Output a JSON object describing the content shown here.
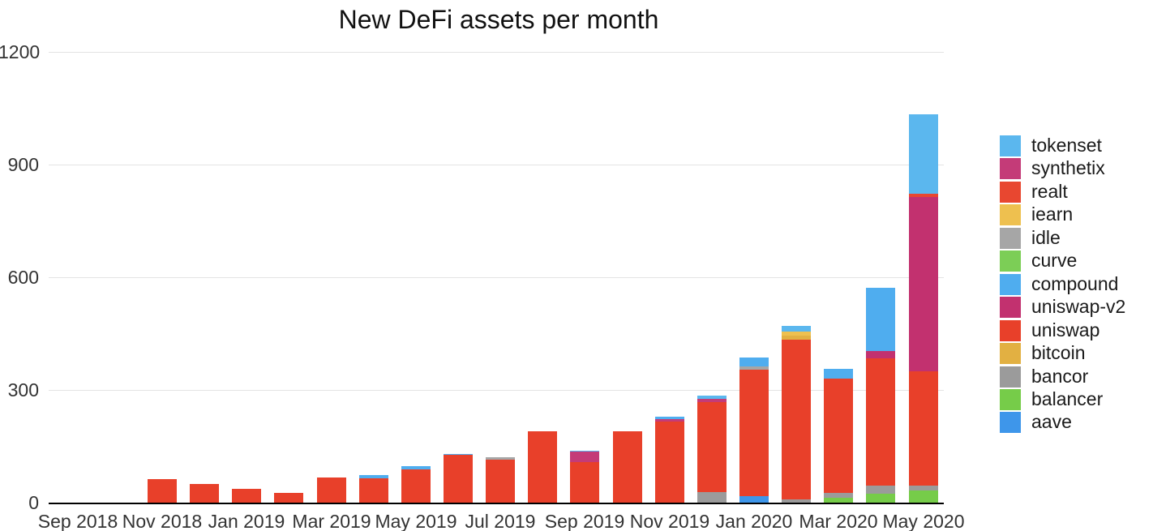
{
  "chart_data": {
    "type": "bar",
    "variant": "stacked",
    "title": "New DeFi assets per month",
    "xlabel": "",
    "ylabel": "",
    "ylim": [
      0,
      1200
    ],
    "y_ticks": [
      0,
      300,
      600,
      900,
      1200
    ],
    "grid": "horizontal",
    "legend_position": "right",
    "x_tick_labels": [
      "Sep 2018",
      "Nov 2018",
      "Jan 2019",
      "Mar 2019",
      "May 2019",
      "Jul 2019",
      "Sep 2019",
      "Nov 2019",
      "Jan 2020",
      "Mar 2020",
      "May 2020"
    ],
    "legend": [
      "tokenset",
      "synthetix",
      "realt",
      "iearn",
      "idle",
      "curve",
      "compound",
      "uniswap-v2",
      "uniswap",
      "bitcoin",
      "bancor",
      "balancer",
      "aave"
    ],
    "series_colors": {
      "tokenset": "#5bb7ee",
      "synthetix": "#c43b78",
      "realt": "#e84730",
      "iearn": "#eec04f",
      "idle": "#a6a6a6",
      "curve": "#7cce56",
      "compound": "#4fadef",
      "uniswap-v2": "#c2316f",
      "uniswap": "#e8402a",
      "bitcoin": "#e2b042",
      "bancor": "#9b9b9b",
      "balancer": "#76cc49",
      "aave": "#3e96ea"
    },
    "bars": [
      {
        "month": "Sep 2018",
        "segments": []
      },
      {
        "month": "Oct 2018",
        "segments": []
      },
      {
        "month": "Nov 2018",
        "segments": [
          {
            "series": "uniswap",
            "value": 62
          }
        ]
      },
      {
        "month": "Dec 2018",
        "segments": [
          {
            "series": "uniswap",
            "value": 50
          }
        ]
      },
      {
        "month": "Jan 2019",
        "segments": [
          {
            "series": "uniswap",
            "value": 36
          }
        ]
      },
      {
        "month": "Feb 2019",
        "segments": [
          {
            "series": "uniswap",
            "value": 26
          }
        ]
      },
      {
        "month": "Mar 2019",
        "segments": [
          {
            "series": "uniswap",
            "value": 67
          }
        ]
      },
      {
        "month": "Apr 2019",
        "segments": [
          {
            "series": "uniswap",
            "value": 64
          },
          {
            "series": "compound",
            "value": 9
          }
        ]
      },
      {
        "month": "May 2019",
        "segments": [
          {
            "series": "uniswap",
            "value": 88
          },
          {
            "series": "compound",
            "value": 9
          }
        ]
      },
      {
        "month": "Jun 2019",
        "segments": [
          {
            "series": "uniswap",
            "value": 127
          },
          {
            "series": "compound",
            "value": 3
          }
        ]
      },
      {
        "month": "Jul 2019",
        "segments": [
          {
            "series": "uniswap",
            "value": 114
          },
          {
            "series": "idle",
            "value": 7
          }
        ]
      },
      {
        "month": "Aug 2019",
        "segments": [
          {
            "series": "uniswap",
            "value": 190
          }
        ]
      },
      {
        "month": "Sep 2019",
        "segments": [
          {
            "series": "uniswap",
            "value": 107
          },
          {
            "series": "synthetix",
            "value": 28
          },
          {
            "series": "tokenset",
            "value": 3
          }
        ]
      },
      {
        "month": "Oct 2019",
        "segments": [
          {
            "series": "uniswap",
            "value": 190
          }
        ]
      },
      {
        "month": "Nov 2019",
        "segments": [
          {
            "series": "uniswap",
            "value": 215
          },
          {
            "series": "synthetix",
            "value": 8
          },
          {
            "series": "compound",
            "value": 6
          }
        ]
      },
      {
        "month": "Dec 2019",
        "segments": [
          {
            "series": "bancor",
            "value": 28
          },
          {
            "series": "uniswap",
            "value": 240
          },
          {
            "series": "synthetix",
            "value": 9
          },
          {
            "series": "tokenset",
            "value": 8
          }
        ]
      },
      {
        "month": "Jan 2020",
        "segments": [
          {
            "series": "aave",
            "value": 17
          },
          {
            "series": "uniswap",
            "value": 337
          },
          {
            "series": "idle",
            "value": 9
          },
          {
            "series": "compound",
            "value": 23
          }
        ]
      },
      {
        "month": "Feb 2020",
        "segments": [
          {
            "series": "bancor",
            "value": 9
          },
          {
            "series": "uniswap",
            "value": 424
          },
          {
            "series": "bitcoin",
            "value": 11
          },
          {
            "series": "iearn",
            "value": 11
          },
          {
            "series": "tokenset",
            "value": 15
          }
        ]
      },
      {
        "month": "Mar 2020",
        "segments": [
          {
            "series": "balancer",
            "value": 13
          },
          {
            "series": "bancor",
            "value": 13
          },
          {
            "series": "uniswap",
            "value": 304
          },
          {
            "series": "compound",
            "value": 26
          }
        ]
      },
      {
        "month": "Apr 2020",
        "segments": [
          {
            "series": "balancer",
            "value": 24
          },
          {
            "series": "bancor",
            "value": 22
          },
          {
            "series": "uniswap",
            "value": 338
          },
          {
            "series": "uniswap-v2",
            "value": 20
          },
          {
            "series": "compound",
            "value": 168
          }
        ]
      },
      {
        "month": "May 2020",
        "segments": [
          {
            "series": "balancer",
            "value": 32
          },
          {
            "series": "bancor",
            "value": 13
          },
          {
            "series": "uniswap",
            "value": 304
          },
          {
            "series": "uniswap-v2",
            "value": 464
          },
          {
            "series": "realt",
            "value": 9
          },
          {
            "series": "tokenset",
            "value": 212
          }
        ]
      }
    ]
  }
}
